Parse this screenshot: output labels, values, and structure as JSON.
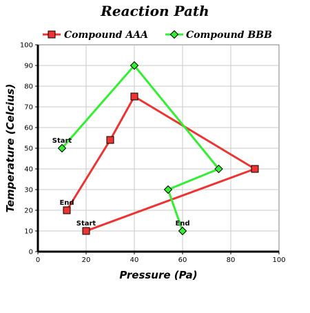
{
  "chart_data": {
    "type": "line",
    "title": "Reaction Path",
    "xlabel": "Pressure (Pa)",
    "ylabel": "Temperature (Celcius)",
    "xlim": [
      0,
      100
    ],
    "ylim": [
      0,
      100
    ],
    "x_ticks": [
      "0",
      "20",
      "40",
      "60",
      "80",
      "100"
    ],
    "y_ticks": [
      "0",
      "10",
      "20",
      "30",
      "40",
      "50",
      "60",
      "70",
      "80",
      "90",
      "100"
    ],
    "grid": true,
    "legend_position": "top",
    "series": [
      {
        "name": "Compound AAA",
        "color": "#ee3333",
        "marker": "square",
        "points": [
          [
            20,
            10
          ],
          [
            90,
            40
          ],
          [
            40,
            75
          ],
          [
            30,
            54
          ],
          [
            12,
            20
          ]
        ]
      },
      {
        "name": "Compound BBB",
        "color": "#33ee33",
        "marker": "diamond",
        "points": [
          [
            10,
            50
          ],
          [
            40,
            90
          ],
          [
            75,
            40
          ],
          [
            54,
            30
          ],
          [
            60,
            10
          ]
        ]
      }
    ],
    "annotations": [
      {
        "text": "Start",
        "x": 20,
        "y": 10
      },
      {
        "text": "End",
        "x": 12,
        "y": 20
      },
      {
        "text": "Start",
        "x": 10,
        "y": 50
      },
      {
        "text": "End",
        "x": 60,
        "y": 10
      }
    ]
  }
}
